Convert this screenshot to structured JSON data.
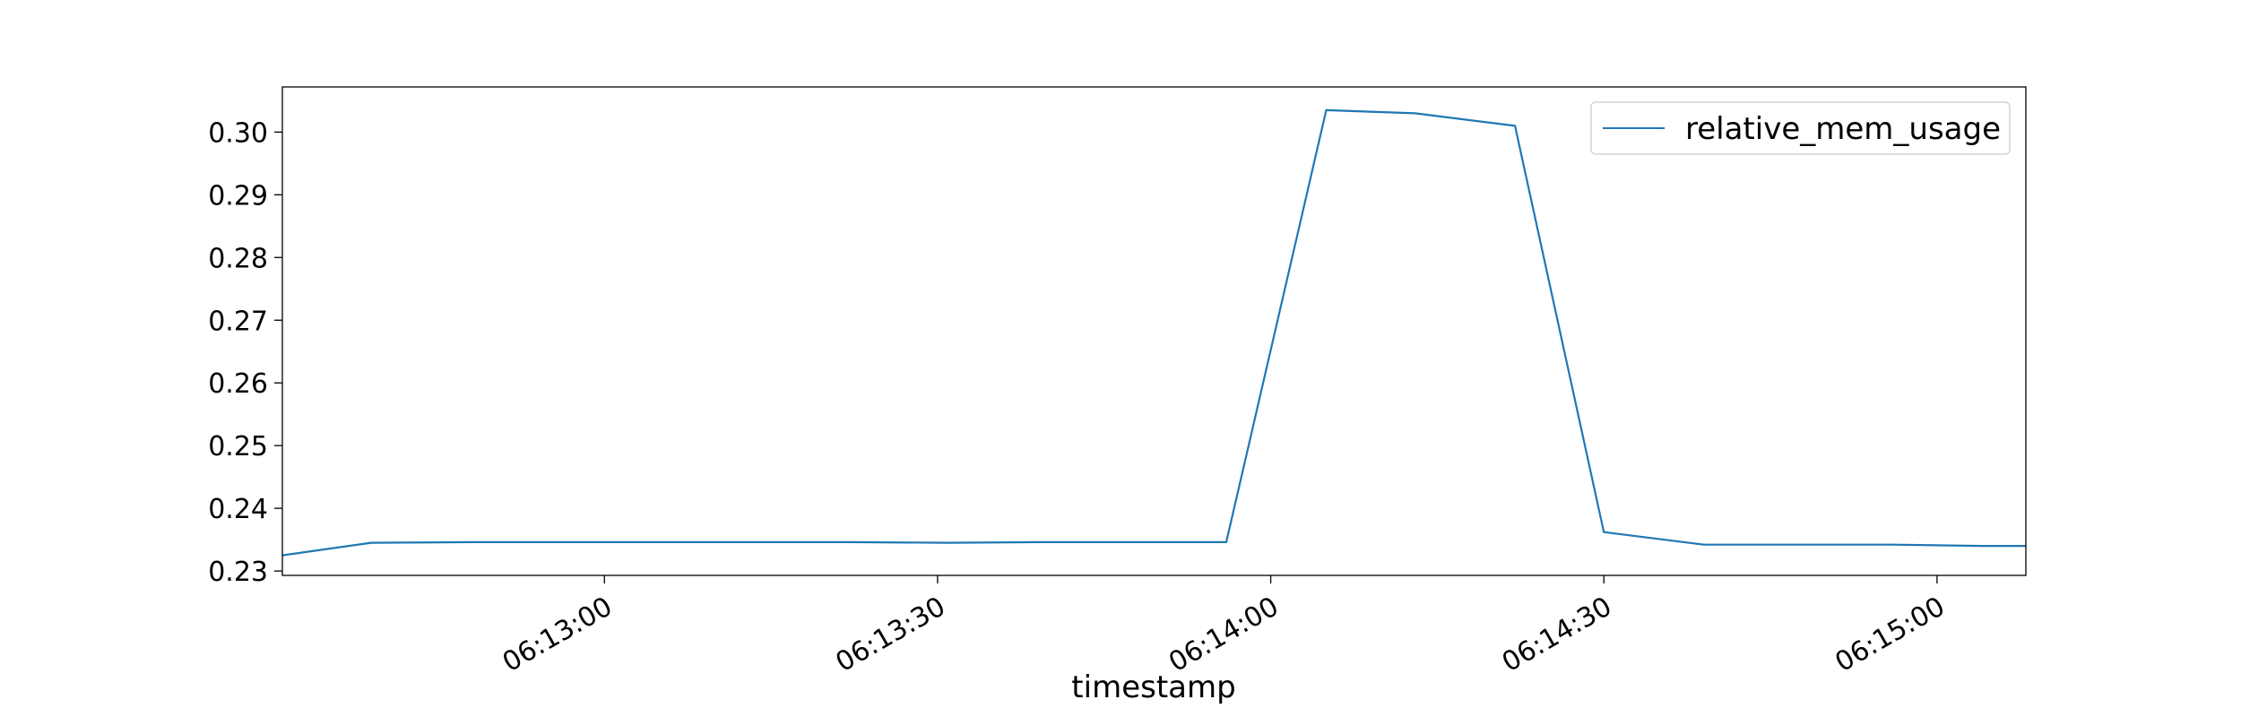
{
  "chart_data": {
    "type": "line",
    "title": "",
    "xlabel": "timestamp",
    "ylabel": "",
    "x_tick_labels": [
      "06:13:00",
      "06:13:30",
      "06:14:00",
      "06:14:30",
      "06:15:00"
    ],
    "y_tick_labels": [
      "0.23",
      "0.24",
      "0.25",
      "0.26",
      "0.27",
      "0.28",
      "0.29",
      "0.30"
    ],
    "y_ticks": [
      0.23,
      0.24,
      0.25,
      0.26,
      0.27,
      0.28,
      0.29,
      0.3
    ],
    "ylim": [
      0.2293,
      0.3072
    ],
    "xlim": [
      "06:12:31",
      "06:15:08"
    ],
    "grid": false,
    "legend_position": "top-right",
    "series": [
      {
        "name": "relative_mem_usage",
        "color": "#1f77b4",
        "x": [
          "06:12:31",
          "06:12:39",
          "06:12:48",
          "06:12:56",
          "06:13:05",
          "06:13:14",
          "06:13:22",
          "06:13:31",
          "06:13:39",
          "06:13:48",
          "06:13:56",
          "06:14:05",
          "06:14:13",
          "06:14:22",
          "06:14:30",
          "06:14:39",
          "06:14:47",
          "06:14:56",
          "06:15:04",
          "06:15:08"
        ],
        "values": [
          0.2325,
          0.2345,
          0.2346,
          0.2346,
          0.2346,
          0.2346,
          0.2346,
          0.2345,
          0.2346,
          0.2346,
          0.2346,
          0.3035,
          0.303,
          0.301,
          0.2362,
          0.2342,
          0.2342,
          0.2342,
          0.234,
          0.234
        ]
      }
    ]
  }
}
